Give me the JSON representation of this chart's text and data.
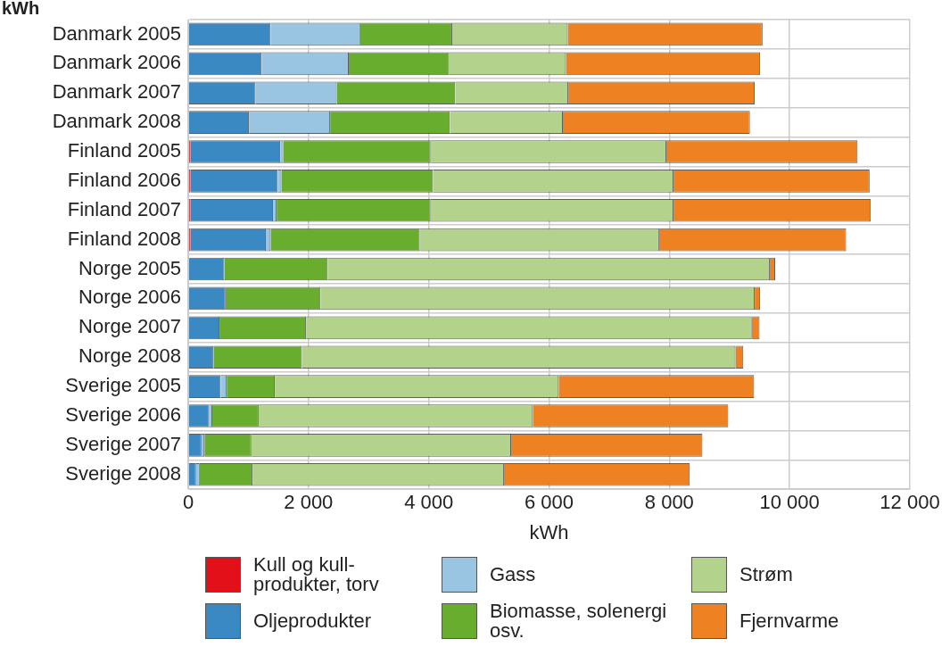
{
  "chart_data": {
    "type": "bar",
    "orientation": "horizontal",
    "stacked": true,
    "ylabel": "kWh",
    "xlabel": "kWh",
    "categories": [
      "Danmark 2005",
      "Danmark 2006",
      "Danmark 2007",
      "Danmark 2008",
      "Finland 2005",
      "Finland 2006",
      "Finland 2007",
      "Finland 2008",
      "Norge 2005",
      "Norge 2006",
      "Norge 2007",
      "Norge 2008",
      "Sverige 2005",
      "Sverige 2006",
      "Sverige 2007",
      "Sverige 2008"
    ],
    "series": [
      {
        "name": "Kull og kull-produkter, torv",
        "color": "#e3101a",
        "values": [
          0,
          0,
          0,
          0,
          40,
          40,
          40,
          40,
          0,
          0,
          0,
          0,
          0,
          0,
          0,
          0
        ]
      },
      {
        "name": "Oljeprodukter",
        "color": "#3a89c3",
        "values": [
          1370,
          1220,
          1120,
          1010,
          1490,
          1450,
          1370,
          1250,
          600,
          620,
          520,
          420,
          540,
          350,
          220,
          130
        ]
      },
      {
        "name": "Gass",
        "color": "#9ac5e2",
        "values": [
          1490,
          1450,
          1350,
          1350,
          50,
          60,
          60,
          80,
          0,
          0,
          0,
          0,
          100,
          50,
          50,
          60
        ]
      },
      {
        "name": "Biomasse, solenergi osv.",
        "color": "#69ad2e",
        "values": [
          1530,
          1670,
          1970,
          1990,
          2450,
          2520,
          2560,
          2480,
          1720,
          1580,
          1440,
          1470,
          800,
          770,
          780,
          880
        ]
      },
      {
        "name": "Strøm",
        "color": "#b3d38c",
        "values": [
          1920,
          1940,
          1880,
          1880,
          3920,
          4000,
          4040,
          3980,
          7350,
          7220,
          7410,
          7210,
          4720,
          4560,
          4320,
          4180
        ]
      },
      {
        "name": "Fjernvarme",
        "color": "#ee8122",
        "values": [
          3240,
          3230,
          3100,
          3110,
          3180,
          3260,
          3280,
          3110,
          90,
          90,
          130,
          130,
          3250,
          3250,
          3180,
          3090
        ]
      }
    ],
    "xlim": [
      0,
      12000
    ],
    "xticks": [
      0,
      {
        "value": 2000,
        "label": "2 000"
      },
      {
        "value": 4000,
        "label": "4 000"
      },
      {
        "value": 6000,
        "label": "6 000"
      },
      {
        "value": 8000,
        "label": "8 000"
      },
      {
        "value": 10000,
        "label": "10 000"
      },
      {
        "value": 12000,
        "label": "12 000"
      }
    ],
    "grid": true,
    "legend": "bottom"
  }
}
